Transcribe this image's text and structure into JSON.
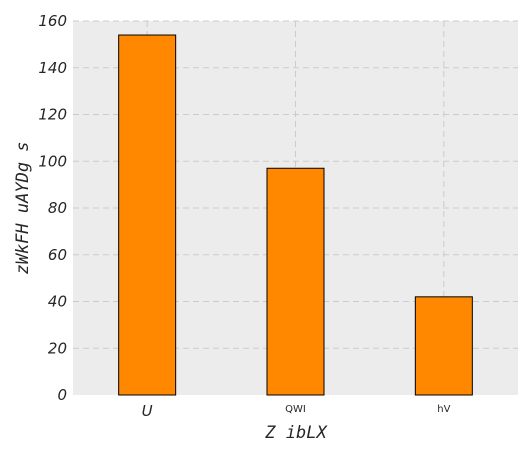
{
  "chart_data": {
    "type": "bar",
    "categories": [
      "U",
      "QWI",
      "hV"
    ],
    "values": [
      154,
      97,
      42
    ],
    "xlabel": "Z ibLX",
    "ylabel": "zWkFH uAYDg s",
    "ylim": [
      0,
      160
    ],
    "yticks": [
      "0",
      "20",
      "40",
      "60",
      "80",
      "100",
      "120",
      "140",
      "160"
    ],
    "grid": true,
    "colors": {
      "bar": "#ff8800",
      "bar_edge": "#000000",
      "plot_bg": "#ececec"
    }
  }
}
